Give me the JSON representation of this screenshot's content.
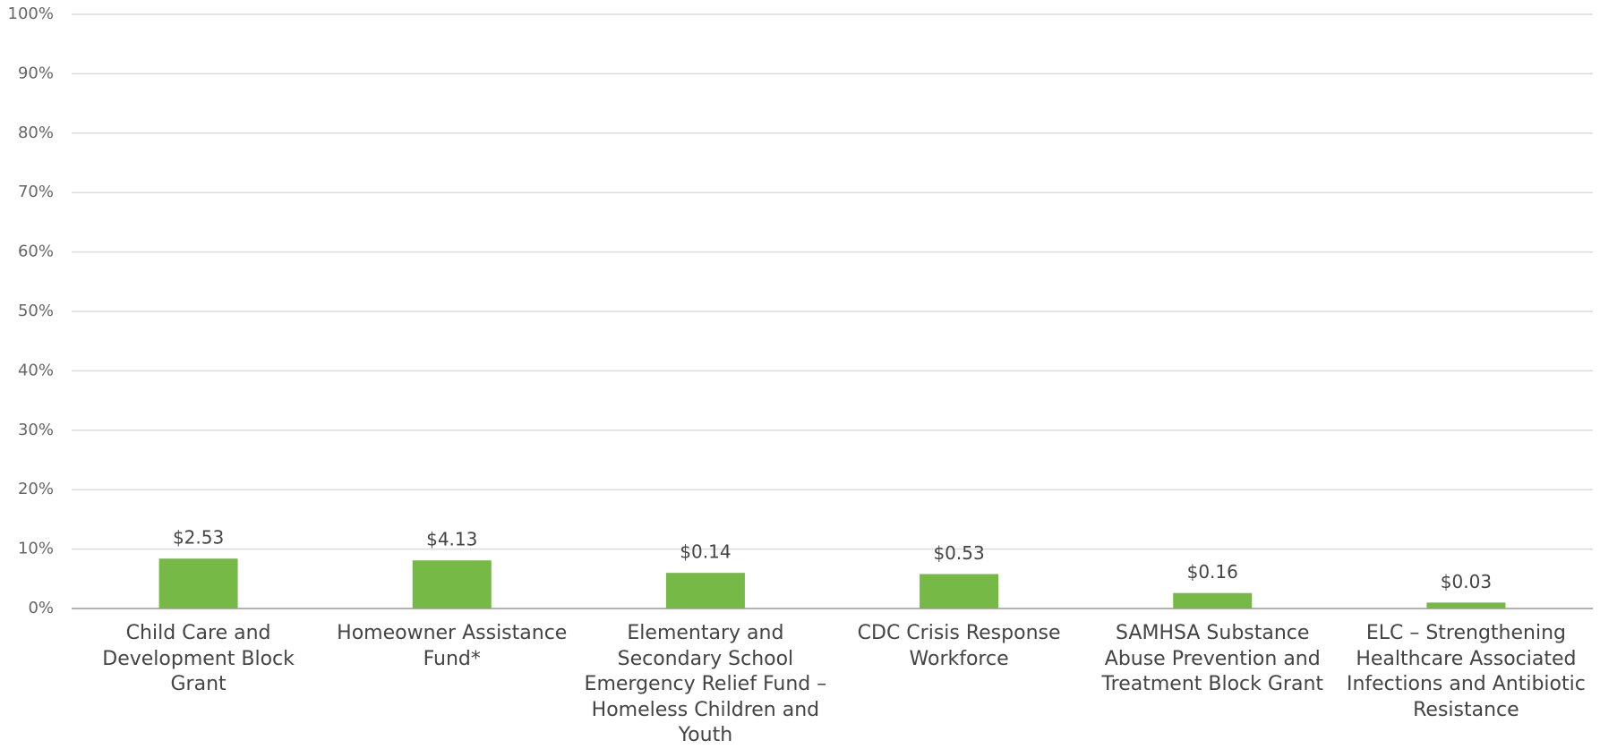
{
  "chart_data": {
    "type": "bar",
    "categories": [
      "Child Care and Development Block Grant",
      "Homeowner Assistance Fund*",
      "Elementary and Secondary School Emergency Relief Fund – Homeless Children and Youth",
      "CDC Crisis Response Workforce",
      "SAMHSA Substance Abuse Prevention and Treatment Block Grant",
      "ELC – Strengthening Healthcare Associated Infections and Antibiotic Resistance"
    ],
    "values": [
      8.4,
      8.1,
      6.0,
      5.8,
      2.6,
      1.0
    ],
    "amount_labels": [
      "$2.53",
      "$4.13",
      "$0.14",
      "$0.53",
      "$0.16",
      "$0.03"
    ],
    "color": "#76b947",
    "ylim": [
      0,
      100
    ],
    "yticks": [
      {
        "value": 0,
        "label": "0%"
      },
      {
        "value": 10,
        "label": "10%"
      },
      {
        "value": 20,
        "label": "20%"
      },
      {
        "value": 30,
        "label": "30%"
      },
      {
        "value": 40,
        "label": "40%"
      },
      {
        "value": 50,
        "label": "50%"
      },
      {
        "value": 60,
        "label": "60%"
      },
      {
        "value": 70,
        "label": "70%"
      },
      {
        "value": 80,
        "label": "80%"
      },
      {
        "value": 90,
        "label": "90%"
      },
      {
        "value": 100,
        "label": "100%"
      }
    ],
    "grid": true
  }
}
